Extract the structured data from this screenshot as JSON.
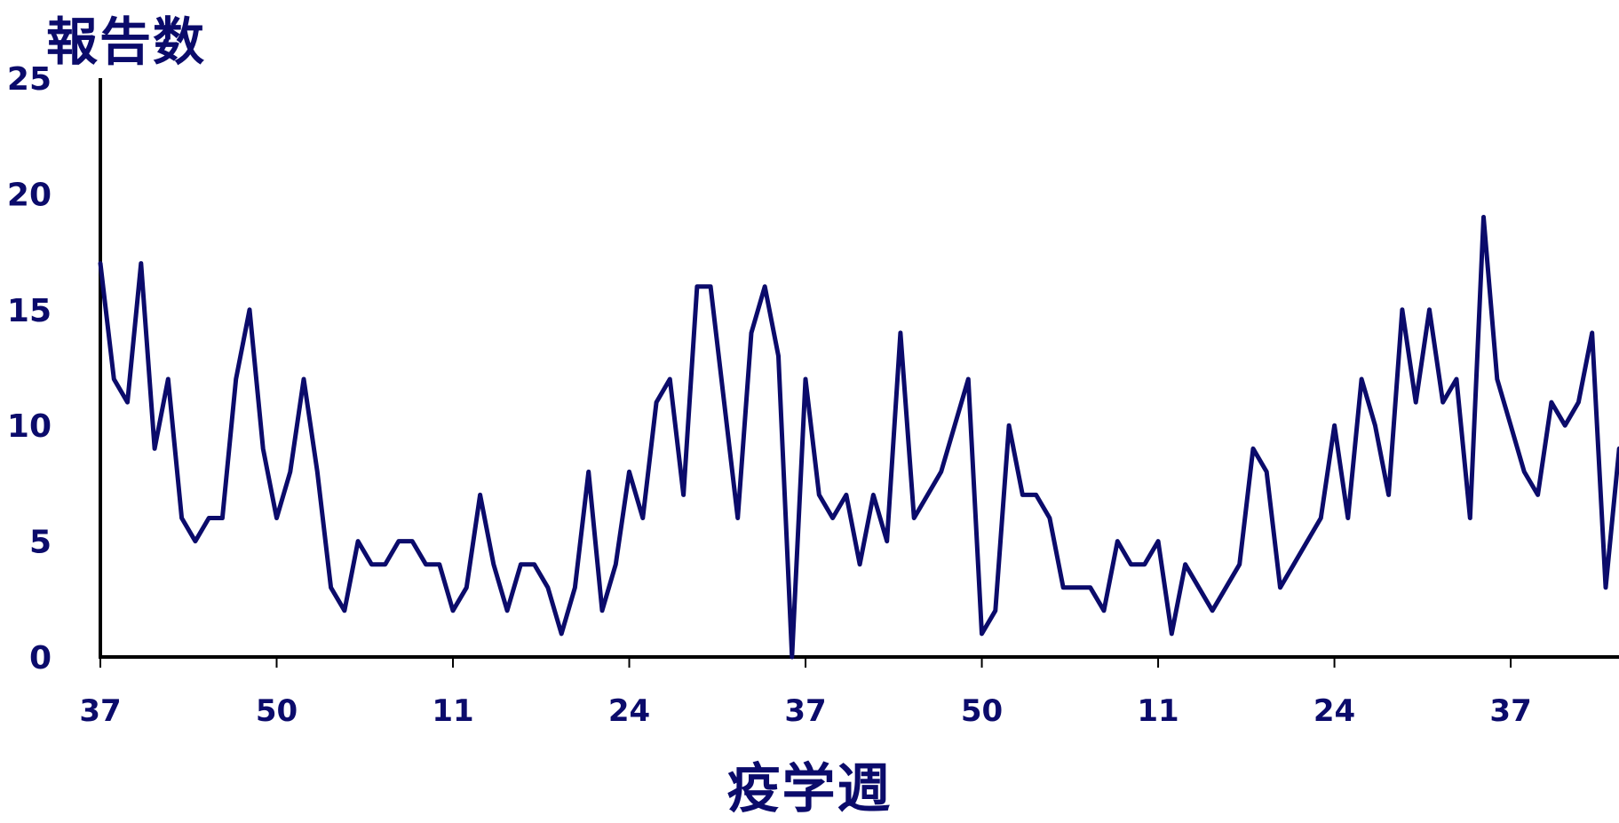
{
  "chart_data": {
    "type": "line",
    "ylabel": "報告数",
    "xlabel": "疫学週",
    "ylim": [
      0,
      25
    ],
    "yticks": [
      0,
      5,
      10,
      15,
      20,
      25
    ],
    "xtick_labels": [
      "37",
      "50",
      "11",
      "24",
      "37",
      "50",
      "11",
      "24",
      "37"
    ],
    "xtick_indices": [
      0,
      13,
      26,
      39,
      52,
      65,
      78,
      91,
      104
    ],
    "grid": false,
    "line_color": "#0b0b6b",
    "series": [
      {
        "values": [
          17,
          12,
          11,
          17,
          9,
          12,
          6,
          5,
          6,
          6,
          12,
          15,
          9,
          6,
          8,
          12,
          8,
          3,
          2,
          5,
          4,
          4,
          5,
          5,
          4,
          4,
          2,
          3,
          7,
          4,
          2,
          4,
          4,
          3,
          1,
          3,
          8,
          2,
          4,
          8,
          6,
          11,
          12,
          7,
          16,
          16,
          11,
          6,
          14,
          16,
          13,
          0,
          12,
          7,
          6,
          7,
          4,
          7,
          5,
          14,
          6,
          7,
          8,
          10,
          12,
          1,
          2,
          10,
          7,
          7,
          6,
          3,
          3,
          3,
          2,
          5,
          4,
          4,
          5,
          1,
          4,
          3,
          2,
          3,
          4,
          9,
          8,
          3,
          4,
          5,
          6,
          10,
          6,
          12,
          10,
          7,
          15,
          11,
          15,
          11,
          12,
          6,
          19,
          12,
          10,
          8,
          7,
          11,
          10,
          11,
          14,
          3,
          9
        ]
      }
    ]
  }
}
